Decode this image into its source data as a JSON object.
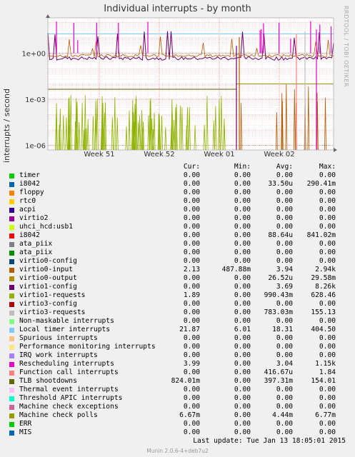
{
  "title": "Individual interrupts - by month",
  "ylabel": "interrupts / second",
  "vendor": "RRDTOOL / TOBI OETIKER",
  "columns": [
    "Cur:",
    "Min:",
    "Avg:",
    "Max:"
  ],
  "last_update": "Last update:  Tue Jan 13 18:05:01 2015",
  "footer": "Munin 2.0.6-4+deb7u2",
  "chart_data": {
    "type": "line",
    "title": "Individual interrupts - by month",
    "ylabel": "interrupts / second",
    "yscale": "log",
    "ylim": [
      5e-07,
      200
    ],
    "y_ticks": [
      "1e-06",
      "1e-03",
      "1e+00"
    ],
    "x_ticks": [
      "Week 51",
      "Week 52",
      "Week 01",
      "Week 02"
    ],
    "grid": true,
    "series": [
      {
        "name": "timer",
        "color": "#00cc00",
        "cur": "0.00",
        "min": "0.00",
        "avg": "0.00",
        "max": "0.00"
      },
      {
        "name": "i8042",
        "color": "#0066b3",
        "cur": "0.00",
        "min": "0.00",
        "avg": "33.50u",
        "max": "290.41m"
      },
      {
        "name": "floppy",
        "color": "#ff8000",
        "cur": "0.00",
        "min": "0.00",
        "avg": "0.00",
        "max": "0.00"
      },
      {
        "name": "rtc0",
        "color": "#ffcc00",
        "cur": "0.00",
        "min": "0.00",
        "avg": "0.00",
        "max": "0.00"
      },
      {
        "name": "acpi",
        "color": "#330099",
        "cur": "0.00",
        "min": "0.00",
        "avg": "0.00",
        "max": "0.00"
      },
      {
        "name": "virtio2",
        "color": "#990099",
        "cur": "0.00",
        "min": "0.00",
        "avg": "0.00",
        "max": "0.00"
      },
      {
        "name": "uhci_hcd:usb1",
        "color": "#ccff00",
        "cur": "0.00",
        "min": "0.00",
        "avg": "0.00",
        "max": "0.00"
      },
      {
        "name": "i8042",
        "color": "#ff0000",
        "cur": "0.00",
        "min": "0.00",
        "avg": "88.64u",
        "max": "841.02m"
      },
      {
        "name": "ata_piix",
        "color": "#808080",
        "cur": "0.00",
        "min": "0.00",
        "avg": "0.00",
        "max": "0.00"
      },
      {
        "name": "ata_piix",
        "color": "#008f00",
        "cur": "0.00",
        "min": "0.00",
        "avg": "0.00",
        "max": "0.00"
      },
      {
        "name": "virtio0-config",
        "color": "#00487d",
        "cur": "0.00",
        "min": "0.00",
        "avg": "0.00",
        "max": "0.00"
      },
      {
        "name": "virtio0-input",
        "color": "#b35a00",
        "cur": "2.13",
        "min": "487.88m",
        "avg": "3.94",
        "max": "2.94k"
      },
      {
        "name": "virtio0-output",
        "color": "#b38f00",
        "cur": "0.00",
        "min": "0.00",
        "avg": "26.52u",
        "max": "29.58m"
      },
      {
        "name": "virtio1-config",
        "color": "#6b006b",
        "cur": "0.00",
        "min": "0.00",
        "avg": "3.69",
        "max": "8.26k"
      },
      {
        "name": "virtio1-requests",
        "color": "#8fb300",
        "cur": "1.89",
        "min": "0.00",
        "avg": "990.43m",
        "max": "628.46"
      },
      {
        "name": "virtio3-config",
        "color": "#b30000",
        "cur": "0.00",
        "min": "0.00",
        "avg": "0.00",
        "max": "0.00"
      },
      {
        "name": "virtio3-requests",
        "color": "#bebebe",
        "cur": "0.00",
        "min": "0.00",
        "avg": "783.03m",
        "max": "155.13"
      },
      {
        "name": "Non-maskable interrupts",
        "color": "#80ff80",
        "cur": "0.00",
        "min": "0.00",
        "avg": "0.00",
        "max": "0.00"
      },
      {
        "name": "Local timer interrupts",
        "color": "#80c9ff",
        "cur": "21.87",
        "min": "6.01",
        "avg": "18.31",
        "max": "404.50"
      },
      {
        "name": "Spurious interrupts",
        "color": "#ffc080",
        "cur": "0.00",
        "min": "0.00",
        "avg": "0.00",
        "max": "0.00"
      },
      {
        "name": "Performance monitoring interrupts",
        "color": "#ffe680",
        "cur": "0.00",
        "min": "0.00",
        "avg": "0.00",
        "max": "0.00"
      },
      {
        "name": "IRQ work interrupts",
        "color": "#aa80ff",
        "cur": "0.00",
        "min": "0.00",
        "avg": "0.00",
        "max": "0.00"
      },
      {
        "name": "Rescheduling interrupts",
        "color": "#ee00cc",
        "cur": "3.99",
        "min": "0.00",
        "avg": "3.04",
        "max": "1.15k"
      },
      {
        "name": "Function call interrupts",
        "color": "#ff8080",
        "cur": "0.00",
        "min": "0.00",
        "avg": "416.67u",
        "max": "1.84"
      },
      {
        "name": "TLB shootdowns",
        "color": "#666600",
        "cur": "824.01m",
        "min": "0.00",
        "avg": "397.31m",
        "max": "154.01"
      },
      {
        "name": "Thermal event interrupts",
        "color": "#ffbfff",
        "cur": "0.00",
        "min": "0.00",
        "avg": "0.00",
        "max": "0.00"
      },
      {
        "name": "Threshold APIC interrupts",
        "color": "#00ffcc",
        "cur": "0.00",
        "min": "0.00",
        "avg": "0.00",
        "max": "0.00"
      },
      {
        "name": "Machine check exceptions",
        "color": "#cc6699",
        "cur": "0.00",
        "min": "0.00",
        "avg": "0.00",
        "max": "0.00"
      },
      {
        "name": "Machine check polls",
        "color": "#999900",
        "cur": "6.67m",
        "min": "0.00",
        "avg": "4.44m",
        "max": "6.77m"
      },
      {
        "name": "ERR",
        "color": "#00cc00",
        "cur": "0.00",
        "min": "0.00",
        "avg": "0.00",
        "max": "0.00"
      },
      {
        "name": "MIS",
        "color": "#0066b3",
        "cur": "0.00",
        "min": "0.00",
        "avg": "0.00",
        "max": "0.00"
      }
    ]
  }
}
